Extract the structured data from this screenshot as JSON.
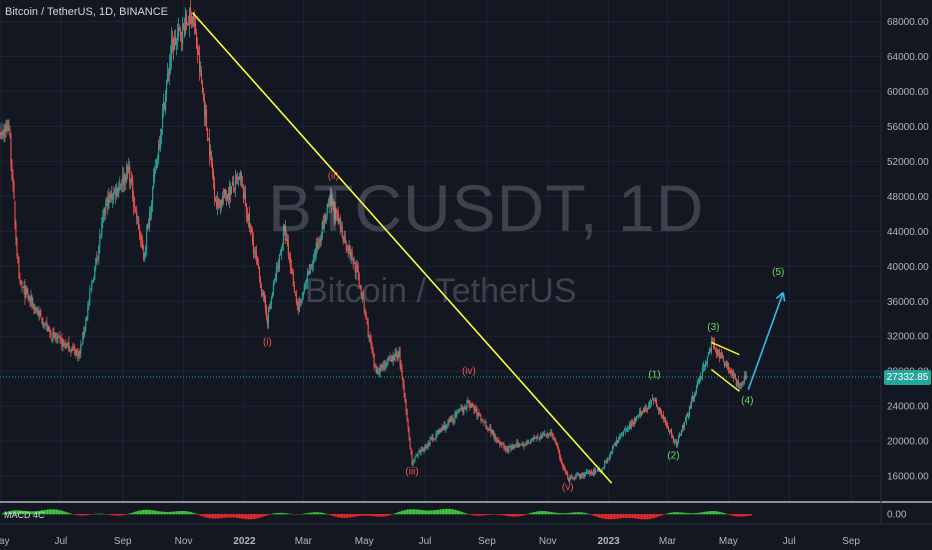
{
  "header": {
    "title": "Bitcoin / TetherUS, 1D, BINANCE"
  },
  "watermark": {
    "symbol": "BTCUSDT, 1D",
    "name": "Bitcoin / TetherUS"
  },
  "price_tag": "27332.85",
  "macd": {
    "label": "MACD 4C",
    "zero_label": "0.00"
  },
  "colors": {
    "background": "#131722",
    "up": "#26a69a",
    "down": "#ef5350",
    "trendline": "#ffff33",
    "wave_red": "#ef5350",
    "wave_green": "#66dd66",
    "projection_arrow": "#3cb7e6"
  },
  "chart_data": {
    "type": "candlestick",
    "y_axis": {
      "min": 13500,
      "max": 70000,
      "ticks": [
        16000,
        20000,
        24000,
        28000,
        32000,
        36000,
        40000,
        44000,
        48000,
        52000,
        56000,
        60000,
        64000,
        68000
      ]
    },
    "y_tick_labels": [
      "16000.00",
      "20000.00",
      "24000.00",
      "28000.00",
      "32000.00",
      "36000.00",
      "40000.00",
      "44000.00",
      "48000.00",
      "52000.00",
      "56000.00",
      "60000.00",
      "64000.00",
      "68000.00"
    ],
    "x_axis": {
      "start": "2021-05-01",
      "end": "2023-09-30"
    },
    "x_ticks": [
      {
        "label": "May",
        "date": "2021-05-01"
      },
      {
        "label": "Jul",
        "date": "2021-07-01"
      },
      {
        "label": "Sep",
        "date": "2021-09-01"
      },
      {
        "label": "Nov",
        "date": "2021-11-01"
      },
      {
        "label": "2022",
        "date": "2022-01-01"
      },
      {
        "label": "Mar",
        "date": "2022-03-01"
      },
      {
        "label": "May",
        "date": "2022-05-01"
      },
      {
        "label": "Jul",
        "date": "2022-07-01"
      },
      {
        "label": "Sep",
        "date": "2022-09-01"
      },
      {
        "label": "Nov",
        "date": "2022-11-01"
      },
      {
        "label": "2023",
        "date": "2023-01-01"
      },
      {
        "label": "Mar",
        "date": "2023-03-01"
      },
      {
        "label": "May",
        "date": "2023-05-01"
      },
      {
        "label": "Jul",
        "date": "2023-07-01"
      },
      {
        "label": "Sep",
        "date": "2023-09-01"
      }
    ],
    "last_price": 27332.85,
    "price_path": [
      {
        "date": "2021-04-20",
        "price": 55000
      },
      {
        "date": "2021-05-10",
        "price": 56000
      },
      {
        "date": "2021-05-20",
        "price": 38000
      },
      {
        "date": "2021-06-01",
        "price": 36000
      },
      {
        "date": "2021-06-22",
        "price": 32000
      },
      {
        "date": "2021-07-20",
        "price": 30000
      },
      {
        "date": "2021-08-15",
        "price": 47000
      },
      {
        "date": "2021-09-07",
        "price": 51000
      },
      {
        "date": "2021-09-22",
        "price": 41000
      },
      {
        "date": "2021-10-20",
        "price": 65000
      },
      {
        "date": "2021-11-10",
        "price": 69000
      },
      {
        "date": "2021-12-04",
        "price": 47000
      },
      {
        "date": "2021-12-28",
        "price": 50000
      },
      {
        "date": "2022-01-24",
        "price": 34000
      },
      {
        "date": "2022-02-10",
        "price": 44000
      },
      {
        "date": "2022-02-24",
        "price": 35000
      },
      {
        "date": "2022-03-28",
        "price": 47500
      },
      {
        "date": "2022-04-25",
        "price": 39000
      },
      {
        "date": "2022-05-12",
        "price": 28000
      },
      {
        "date": "2022-06-05",
        "price": 30000
      },
      {
        "date": "2022-06-18",
        "price": 17600
      },
      {
        "date": "2022-07-10",
        "price": 20500
      },
      {
        "date": "2022-08-14",
        "price": 24400
      },
      {
        "date": "2022-09-20",
        "price": 19000
      },
      {
        "date": "2022-11-05",
        "price": 21000
      },
      {
        "date": "2022-11-21",
        "price": 15600
      },
      {
        "date": "2022-12-25",
        "price": 16800
      },
      {
        "date": "2023-01-14",
        "price": 20900
      },
      {
        "date": "2023-02-16",
        "price": 24800
      },
      {
        "date": "2023-03-10",
        "price": 19600
      },
      {
        "date": "2023-04-14",
        "price": 31000
      },
      {
        "date": "2023-05-01",
        "price": 28500
      },
      {
        "date": "2023-05-12",
        "price": 26200
      },
      {
        "date": "2023-05-19",
        "price": 27330
      }
    ],
    "trendline": {
      "from": {
        "date": "2021-11-10",
        "price": 69000
      },
      "to": {
        "date": "2023-01-04",
        "price": 15200
      }
    },
    "wedge_lines": [
      {
        "from": {
          "date": "2023-04-14",
          "price": 31300
        },
        "to": {
          "date": "2023-05-12",
          "price": 29900
        }
      },
      {
        "from": {
          "date": "2023-04-14",
          "price": 28200
        },
        "to": {
          "date": "2023-05-12",
          "price": 25700
        }
      }
    ],
    "projection_arrow": {
      "from": {
        "date": "2023-05-21",
        "price": 25900
      },
      "to": {
        "date": "2023-06-25",
        "price": 37000
      }
    },
    "annotations": [
      {
        "text": "(i)",
        "date": "2022-01-24",
        "price": 31000,
        "color": "red"
      },
      {
        "text": "(ii)",
        "date": "2022-03-31",
        "price": 50000,
        "color": "red"
      },
      {
        "text": "(iii)",
        "date": "2022-06-18",
        "price": 16200,
        "color": "red"
      },
      {
        "text": "(iv)",
        "date": "2022-08-14",
        "price": 27700,
        "color": "red"
      },
      {
        "text": "(v)",
        "date": "2022-11-21",
        "price": 14400,
        "color": "red"
      },
      {
        "text": "(1)",
        "date": "2023-02-16",
        "price": 27300,
        "color": "green"
      },
      {
        "text": "(2)",
        "date": "2023-03-07",
        "price": 18000,
        "color": "green"
      },
      {
        "text": "(3)",
        "date": "2023-04-16",
        "price": 32700,
        "color": "green"
      },
      {
        "text": "(4)",
        "date": "2023-05-20",
        "price": 24300,
        "color": "green"
      },
      {
        "text": "(5)",
        "date": "2023-06-20",
        "price": 39000,
        "color": "green"
      }
    ]
  }
}
